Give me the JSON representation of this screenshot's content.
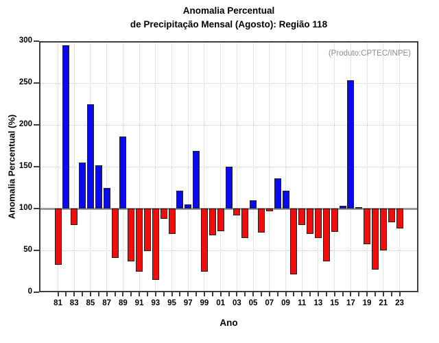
{
  "chart_data": {
    "type": "bar",
    "title_line1": "Anomalia Percentual",
    "title_line2": "de Precipitação Mensal (Agosto): Região 118",
    "annotation": "(Produto:CPTEC/INPE)",
    "ylabel": "Anomalia Percentual (%)",
    "xlabel": "Ano",
    "ylim": [
      0,
      300
    ],
    "yticks": [
      0,
      50,
      100,
      150,
      200,
      250,
      300
    ],
    "baseline_value": 100,
    "grid": "dotted horizontal at 50-multiples and vertical at labeled years",
    "legend_position": "none",
    "years": [
      1981,
      1982,
      1983,
      1984,
      1985,
      1986,
      1987,
      1988,
      1989,
      1990,
      1991,
      1992,
      1993,
      1994,
      1995,
      1996,
      1997,
      1998,
      1999,
      2000,
      2001,
      2002,
      2003,
      2004,
      2005,
      2006,
      2007,
      2008,
      2009,
      2010,
      2011,
      2012,
      2013,
      2014,
      2015,
      2016,
      2017,
      2018,
      2019,
      2020,
      2021,
      2022,
      2023
    ],
    "x_tick_labels": [
      "81",
      "83",
      "85",
      "87",
      "89",
      "91",
      "93",
      "95",
      "97",
      "99",
      "01",
      "03",
      "05",
      "07",
      "09",
      "11",
      "13",
      "15",
      "17",
      "19",
      "21",
      "23"
    ],
    "values": [
      33,
      295,
      80,
      155,
      225,
      152,
      125,
      41,
      186,
      37,
      25,
      49,
      15,
      88,
      70,
      121,
      105,
      169,
      25,
      68,
      73,
      150,
      92,
      65,
      110,
      71,
      97,
      136,
      121,
      21,
      80,
      70,
      65,
      37,
      72,
      103,
      253,
      102,
      57,
      27,
      50,
      84,
      76
    ],
    "colors": {
      "above_baseline": "#0a0af0",
      "below_baseline": "#f20d0d",
      "bar_border": "#1f1f1f",
      "baseline_line": "#9a9a9a",
      "annotation_text": "#8c8c8c",
      "frame": "#3d3d3d",
      "gridline": "#c9c9c9"
    }
  }
}
